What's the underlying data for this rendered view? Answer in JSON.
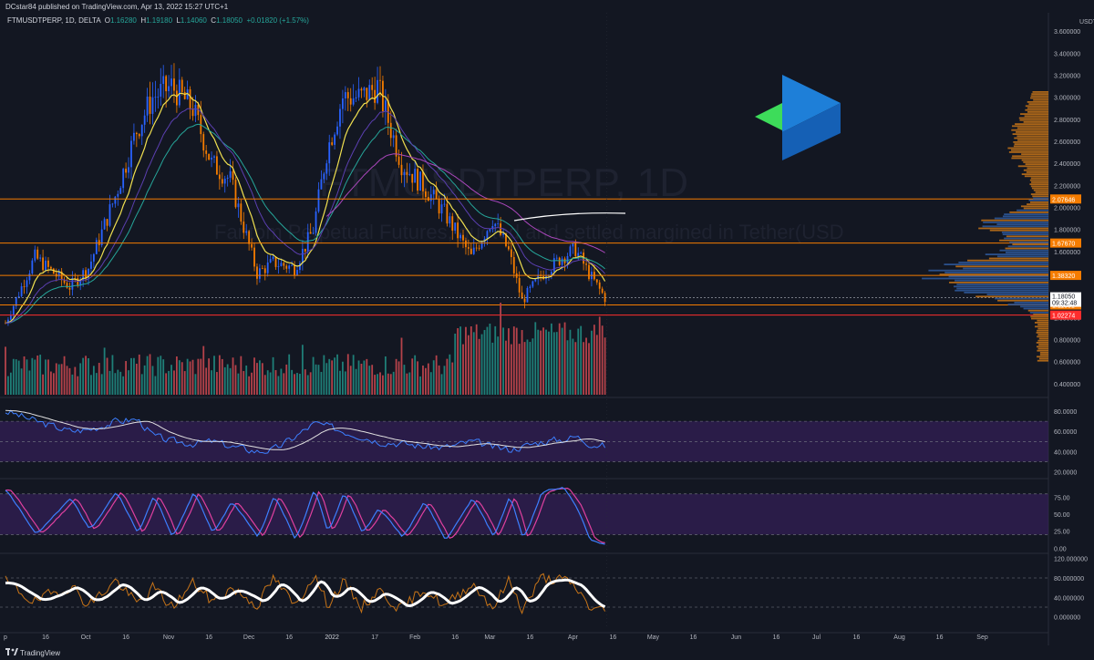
{
  "header": {
    "published": "DCstar84 published on TradingView.com, Apr 13, 2022 15:27 UTC+1",
    "symbol": "FTMUSDTPERP, 1D, DELTA",
    "open_label": "O",
    "open": "1.16280",
    "high_label": "H",
    "high": "1.19180",
    "low_label": "L",
    "low": "1.14060",
    "close_label": "C",
    "close": "1.18050",
    "change": "+0.01820 (+1.57%)"
  },
  "watermark": {
    "title": "FTMUSDTPERP, 1D",
    "subtitle": "Fantom Perpetual Futures, quoted and settled margined in Tether(USD"
  },
  "footer": {
    "brand": "TradingView"
  },
  "colors": {
    "background": "#131722",
    "candle_up": "#2962ff",
    "candle_down": "#f57c00",
    "ema_fast": "#f0e050",
    "ema_mid": "#26a69a",
    "ema_slow1": "#5b3fb0",
    "ema_slow2": "#ab47bc",
    "level_line": "#f57c00",
    "support_line": "#ff2d2d",
    "price_badge_bg": "#ffffff",
    "vol_up": "#1f7f78",
    "vol_down": "#b5424a",
    "rsi": "#3d7fff",
    "rsi_ma": "#e0e0e0",
    "stoch_k": "#3d7fff",
    "stoch_d": "#e040a0",
    "band_fill": "#3b1f63"
  },
  "chart_data": [
    {
      "type": "line",
      "name": "price",
      "unit": "USDT",
      "x": [
        "2021-09-01",
        "2021-09-12",
        "2021-09-25",
        "2021-10-02",
        "2021-10-12",
        "2021-10-20",
        "2021-10-26",
        "2021-11-02",
        "2021-11-10",
        "2021-11-17",
        "2021-11-24",
        "2021-12-04",
        "2021-12-10",
        "2021-12-18",
        "2021-12-25",
        "2021-12-30",
        "2022-01-05",
        "2022-01-12",
        "2022-01-18",
        "2022-01-27",
        "2022-02-04",
        "2022-02-12",
        "2022-02-22",
        "2022-03-02",
        "2022-03-08",
        "2022-03-13",
        "2022-03-20",
        "2022-03-28",
        "2022-04-02",
        "2022-04-07",
        "2022-04-13"
      ],
      "close": [
        0.95,
        1.55,
        1.28,
        1.45,
        2.1,
        2.7,
        3.0,
        3.1,
        2.9,
        2.4,
        2.25,
        1.4,
        1.5,
        1.45,
        1.8,
        2.5,
        3.0,
        3.0,
        3.1,
        2.4,
        2.2,
        1.95,
        1.55,
        1.9,
        1.6,
        1.15,
        1.38,
        1.55,
        1.62,
        1.4,
        1.18
      ],
      "ylim": [
        0.3,
        3.8
      ],
      "y_ticks": [
        "0.400000",
        "0.600000",
        "0.800000",
        "1.000000",
        "1.200000",
        "1.400000",
        "1.600000",
        "1.800000",
        "2.000000",
        "2.200000",
        "2.400000",
        "2.600000",
        "2.800000",
        "3.000000",
        "3.200000",
        "3.400000",
        "3.600000",
        "3.800000"
      ],
      "y_unit_label": "USDT",
      "x_ticks": [
        "p",
        "16",
        "Oct",
        "16",
        "Nov",
        "16",
        "Dec",
        "16",
        "2022",
        "17",
        "Feb",
        "16",
        "Mar",
        "16",
        "Apr",
        "16",
        "May",
        "16",
        "Jun",
        "16",
        "Jul",
        "16",
        "Aug",
        "16",
        "Sep"
      ],
      "levels": [
        {
          "value": 2.07646,
          "label": "2.07646"
        },
        {
          "value": 1.6767,
          "label": "1.67670"
        },
        {
          "value": 1.3832,
          "label": "1.38320"
        },
        {
          "value": 1.11501,
          "label": "1.11501"
        },
        {
          "value": 1.02274,
          "label": "1.02274"
        }
      ],
      "current_price": {
        "value": 1.1805,
        "label": "1.18050",
        "countdown": "09:32:48"
      }
    },
    {
      "type": "line",
      "name": "RSI",
      "ylim": [
        15,
        90
      ],
      "y_ticks": [
        "20.0000",
        "40.0000",
        "60.0000",
        "80.0000"
      ],
      "band": [
        30,
        70
      ],
      "values": [
        80,
        70,
        60,
        62,
        70,
        72,
        55,
        50,
        48,
        50,
        45,
        40,
        42,
        55,
        68,
        65,
        60,
        55,
        50,
        48,
        45,
        44,
        50,
        44,
        42,
        45,
        50,
        52,
        55,
        48,
        45
      ]
    },
    {
      "type": "line",
      "name": "Stoch RSI",
      "ylim": [
        -5,
        100
      ],
      "y_ticks": [
        "0.00",
        "25.00",
        "50.00",
        "75.00"
      ],
      "band": [
        20,
        80
      ],
      "values": [
        85,
        20,
        75,
        25,
        85,
        20,
        80,
        15,
        85,
        20,
        70,
        15,
        80,
        10,
        90,
        20,
        85,
        20,
        60,
        15,
        70,
        10,
        75,
        15,
        80,
        10,
        85,
        90,
        60,
        10,
        5
      ]
    },
    {
      "type": "line",
      "name": "Oscillator",
      "ylim": [
        -25,
        125
      ],
      "y_ticks": [
        "0.000000",
        "40.000000",
        "80.000000",
        "120.000000"
      ],
      "values": [
        70,
        30,
        65,
        25,
        75,
        25,
        60,
        20,
        70,
        30,
        60,
        25,
        80,
        20,
        90,
        25,
        70,
        20,
        55,
        15,
        60,
        20,
        70,
        20,
        75,
        15,
        80,
        75,
        60,
        20,
        10
      ]
    }
  ]
}
